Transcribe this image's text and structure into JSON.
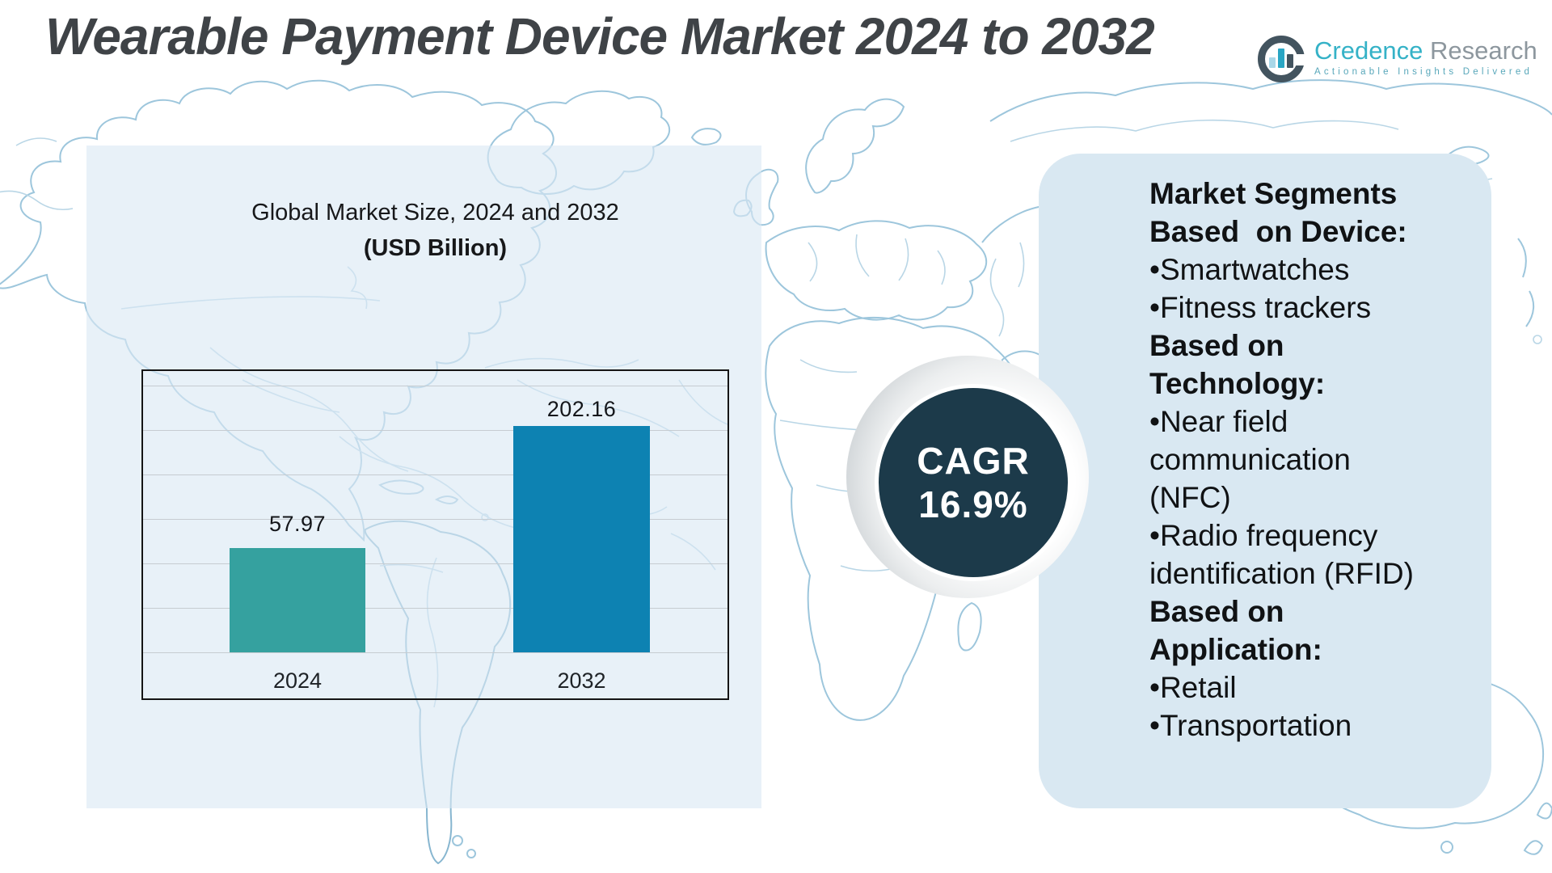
{
  "header": {
    "title": "Wearable Payment Device Market 2024 to 2032",
    "logo": {
      "brand_primary": "Credence",
      "brand_secondary": "Research",
      "tagline": "Actionable Insights Delivered"
    }
  },
  "market_chart": {
    "title_line1": "Global Market Size, 2024 and 2032",
    "title_line2": "(USD Billion)"
  },
  "cagr_badge": {
    "label": "CAGR",
    "value": "16.9%"
  },
  "segments_panel": {
    "lines": [
      {
        "text": "Market Segments",
        "bold": true
      },
      {
        "text": "Based  on Device:",
        "bold": true
      },
      {
        "text": "•Smartwatches",
        "bold": false
      },
      {
        "text": "•Fitness trackers",
        "bold": false
      },
      {
        "text": "Based on",
        "bold": true
      },
      {
        "text": "Technology:",
        "bold": true
      },
      {
        "text": "•Near field",
        "bold": false
      },
      {
        "text": "communication",
        "bold": false
      },
      {
        "text": "(NFC)",
        "bold": false
      },
      {
        "text": "•Radio frequency",
        "bold": false
      },
      {
        "text": "identification (RFID)",
        "bold": false
      },
      {
        "text": "Based on",
        "bold": true
      },
      {
        "text": "Application:",
        "bold": true
      },
      {
        "text": "•Retail",
        "bold": false
      },
      {
        "text": "•Transportation",
        "bold": false
      }
    ]
  },
  "colors": {
    "bar_2024": "#35a19f",
    "bar_2032": "#0d82b2",
    "cagr_circle": "#1c3a4a",
    "panel_blue": "#d9e8f2",
    "map_line": "#9dc6dc"
  },
  "chart_data": {
    "type": "bar",
    "title": "Global Market Size, 2024 and 2032 (USD Billion)",
    "categories": [
      "2024",
      "2032"
    ],
    "values": [
      57.97,
      202.16
    ],
    "ylabel": "USD Billion",
    "xlabel": "",
    "bar_colors": [
      "#35a19f",
      "#0d82b2"
    ],
    "grid": true,
    "legend": false,
    "annotations": [
      "CAGR 16.9%"
    ]
  }
}
